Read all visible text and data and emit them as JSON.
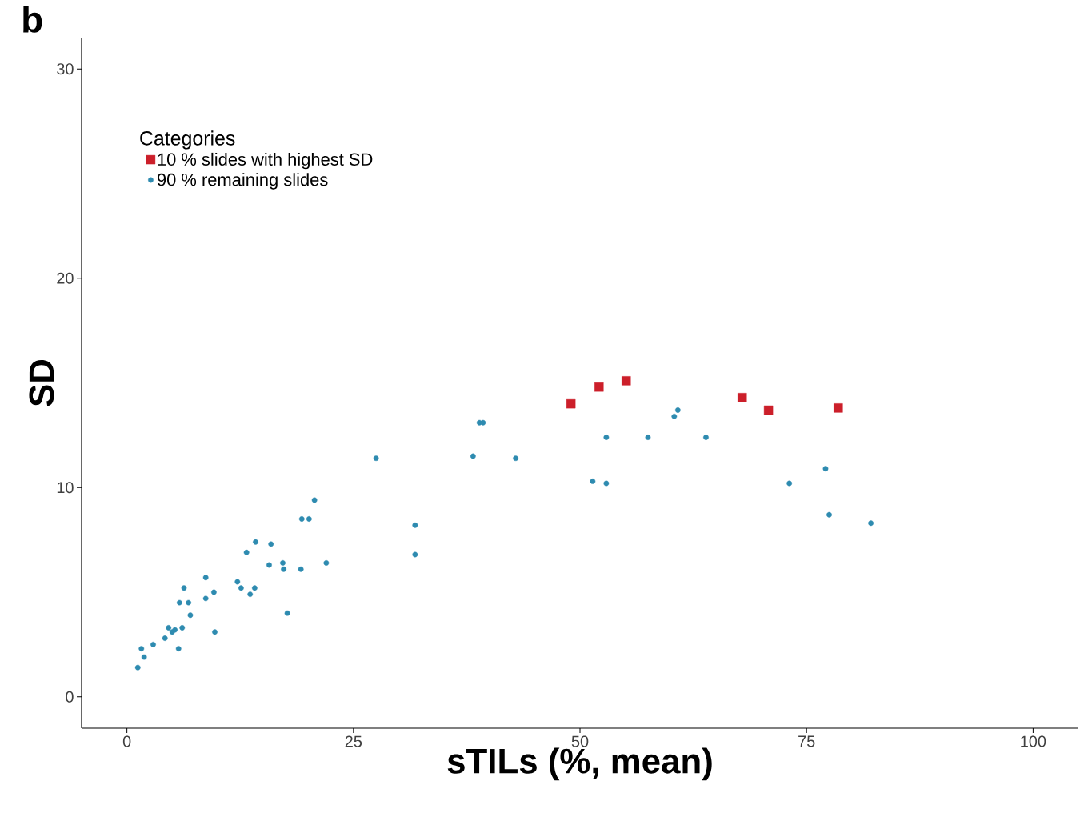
{
  "chart_data": {
    "type": "scatter",
    "title": "b",
    "xlabel": "sTILs (%, mean)",
    "ylabel": "SD",
    "legend_title": "Categories",
    "legend": "top left",
    "grid": false,
    "xlim": [
      -5,
      105
    ],
    "ylim": [
      -1.5,
      31.5
    ],
    "xticks": [
      0,
      25,
      50,
      75,
      100
    ],
    "yticks": [
      0,
      10,
      20,
      30
    ],
    "series": [
      {
        "name": "10 % slides with highest SD",
        "color": "#cc1f2a",
        "marker": "square",
        "x": [
          49.0,
          52.1,
          55.1,
          67.9,
          70.8,
          78.5
        ],
        "values": [
          14.0,
          14.8,
          15.1,
          14.3,
          13.7,
          13.8
        ]
      },
      {
        "name": "90 % remaining slides",
        "color": "#2e8bb0",
        "marker": "circle",
        "x": [
          1.2,
          1.9,
          1.6,
          2.9,
          4.2,
          4.6,
          5.0,
          5.3,
          6.1,
          5.7,
          5.8,
          6.3,
          6.8,
          7.0,
          8.7,
          8.7,
          9.6,
          9.7,
          12.2,
          12.6,
          13.2,
          13.6,
          14.1,
          14.2,
          15.7,
          15.9,
          17.2,
          17.3,
          17.7,
          19.2,
          19.3,
          20.1,
          20.7,
          22.0,
          27.5,
          31.8,
          31.8,
          38.2,
          38.9,
          39.3,
          42.9,
          51.4,
          52.9,
          52.9,
          57.5,
          60.4,
          60.8,
          63.9,
          73.1,
          77.1,
          77.5,
          82.1
        ],
        "values": [
          1.4,
          1.9,
          2.3,
          2.5,
          2.8,
          3.3,
          3.1,
          3.2,
          3.3,
          2.3,
          4.5,
          5.2,
          4.5,
          3.9,
          5.7,
          4.7,
          5.0,
          3.1,
          5.5,
          5.2,
          6.9,
          4.9,
          5.2,
          7.4,
          6.3,
          7.3,
          6.4,
          6.1,
          4.0,
          6.1,
          8.5,
          8.5,
          9.4,
          6.4,
          11.4,
          8.2,
          6.8,
          11.5,
          13.1,
          13.1,
          11.4,
          10.3,
          10.2,
          12.4,
          12.4,
          13.4,
          13.7,
          12.4,
          10.2,
          10.9,
          8.7,
          8.3
        ]
      }
    ]
  }
}
